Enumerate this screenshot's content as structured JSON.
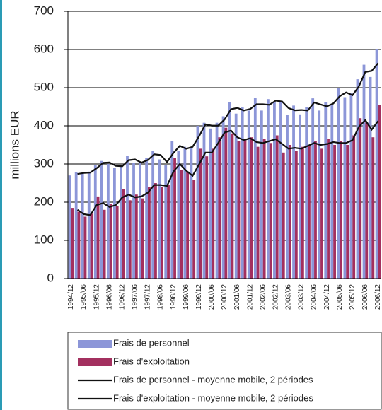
{
  "chart_data": {
    "type": "bar",
    "y_label": "millions EUR",
    "categories": [
      "1994/12",
      null,
      "1995/06",
      null,
      "1995/12",
      null,
      "1996/06",
      null,
      "1996/12",
      null,
      "1997/06",
      null,
      "1997/12",
      null,
      "1998/06",
      null,
      "1998/12",
      null,
      "1999/06",
      null,
      "1999/12",
      null,
      "2000/06",
      null,
      "2000/12",
      null,
      "2001/06",
      null,
      "2001/12",
      null,
      "2002/06",
      null,
      "2002/12",
      null,
      "2003/06",
      null,
      "2003/12",
      null,
      "2004/06",
      null,
      "2004/12",
      null,
      "2005/06",
      null,
      "2005/12",
      null,
      "2006/06",
      null,
      "2006/12"
    ],
    "ylim": [
      0,
      700
    ],
    "yticks": [
      0,
      100,
      200,
      300,
      400,
      500,
      600,
      700
    ],
    "grid": true,
    "series": [
      {
        "name": "Frais de personnel",
        "type": "bar",
        "color": "#8c96d8",
        "values": [
          270,
          278,
          275,
          280,
          298,
          308,
          300,
          290,
          298,
          322,
          302,
          305,
          316,
          335,
          312,
          298,
          360,
          335,
          345,
          345,
          400,
          408,
          393,
          408,
          425,
          462,
          432,
          448,
          440,
          473,
          440,
          470,
          462,
          465,
          428,
          453,
          430,
          450,
          472,
          440,
          462,
          455,
          500,
          475,
          485,
          522,
          560,
          528,
          600
        ]
      },
      {
        "name": "Frais d'exploitation",
        "type": "bar",
        "color": "#a3305f",
        "values": [
          185,
          175,
          162,
          170,
          215,
          180,
          195,
          190,
          235,
          205,
          220,
          210,
          240,
          250,
          240,
          245,
          315,
          285,
          280,
          258,
          340,
          320,
          340,
          370,
          395,
          380,
          360,
          365,
          370,
          345,
          365,
          355,
          375,
          330,
          350,
          335,
          345,
          350,
          360,
          340,
          365,
          350,
          360,
          350,
          375,
          420,
          410,
          370,
          455
        ]
      },
      {
        "name": "Frais de personnel - moyenne mobile, 2 périodes",
        "type": "line",
        "color": "#111111",
        "values": [
          null,
          274,
          276.5,
          277.5,
          289,
          303,
          304,
          295,
          294,
          310,
          312,
          303.5,
          310.5,
          325.5,
          323.5,
          305,
          329,
          347.5,
          340,
          345,
          372.5,
          404,
          400.5,
          400.5,
          416.5,
          443.5,
          447,
          440,
          444,
          456.5,
          456.5,
          455,
          466,
          463.5,
          446.5,
          440.5,
          441.5,
          440,
          461,
          456,
          451,
          458.5,
          477.5,
          487.5,
          480,
          503.5,
          541,
          544,
          564
        ]
      },
      {
        "name": "Frais d'exploitation - moyenne mobile, 2 périodes",
        "type": "line",
        "color": "#111111",
        "values": [
          null,
          180,
          168.5,
          166,
          192.5,
          197.5,
          187.5,
          192.5,
          212.5,
          220,
          212.5,
          215,
          225,
          245,
          245,
          242.5,
          280,
          300,
          282.5,
          269,
          299,
          330,
          330,
          355,
          382.5,
          387.5,
          370,
          362.5,
          367.5,
          357.5,
          355,
          360,
          365,
          352.5,
          340,
          342.5,
          340,
          347.5,
          355,
          350,
          352.5,
          357.5,
          355,
          355,
          362.5,
          397.5,
          415,
          390,
          412.5
        ]
      }
    ]
  }
}
